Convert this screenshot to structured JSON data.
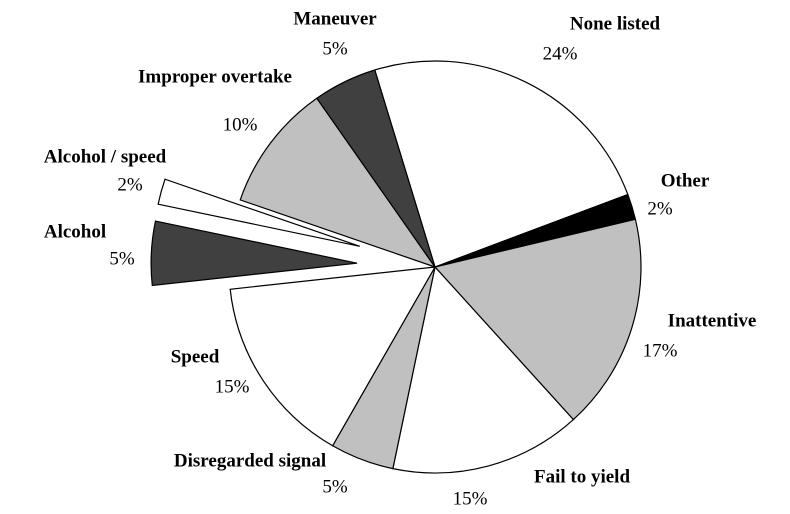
{
  "chart_data": {
    "type": "pie",
    "categories": [
      "None listed",
      "Other",
      "Inattentive",
      "Fail to yield",
      "Disregarded signal",
      "Speed",
      "Alcohol",
      "Alcohol / speed",
      "Improper overtake",
      "Maneuver"
    ],
    "values": [
      24,
      2,
      17,
      15,
      5,
      15,
      5,
      2,
      10,
      5
    ],
    "value_labels": [
      "24%",
      "2%",
      "17%",
      "15%",
      "5%",
      "15%",
      "5%",
      "2%",
      "10%",
      "5%"
    ],
    "colors": [
      "#ffffff",
      "#000000",
      "#c0c0c0",
      "#ffffff",
      "#c0c0c0",
      "#ffffff",
      "#404040",
      "#ffffff",
      "#c0c0c0",
      "#404040"
    ],
    "exploded": [
      false,
      false,
      false,
      false,
      false,
      false,
      true,
      true,
      false,
      false
    ]
  }
}
